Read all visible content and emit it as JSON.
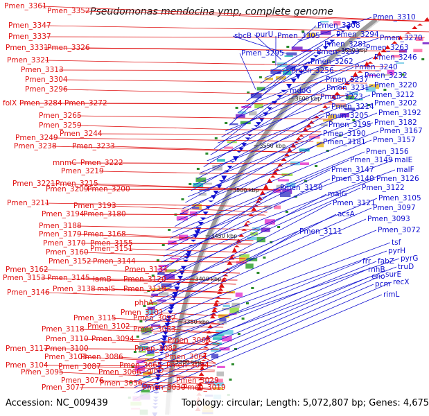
{
  "title": "Pseudomonas mendocina ymp, complete genome",
  "accession": "Accession: NC_009439",
  "topology": "Topology: circular; Length: 5,072,807 bp; Genes: 4,675",
  "colors": {
    "left_strand": "#e01010",
    "right_strand": "#1010d0",
    "backbone": "#9a9a9a",
    "tick": "#2a8a2a"
  },
  "scale_labels": [
    "3650 kbp",
    "3600 kbp",
    "3550 kbp",
    "3500 kbp",
    "3450 kbp",
    "3400 kbp",
    "3350 kbp",
    "3300 kbp"
  ],
  "left_labels": [
    "Pmen_3361",
    "Pmen_3352",
    "Pmen_3347",
    "Pmen_3337",
    "Pmen_3331",
    "Pmen_3326",
    "Pmen_3321",
    "Pmen_3313",
    "Pmen_3304",
    "Pmen_3296",
    "folX",
    "Pmen_3284",
    "Pmen_3272",
    "Pmen_3265",
    "Pmen_3259",
    "Pmen_3244",
    "Pmen_3249",
    "Pmen_3238",
    "Pmen_3233",
    "mnmC",
    "Pmen_3222",
    "Pmen_3219",
    "Pmen_3221",
    "Pmen_3215",
    "Pmen_3209",
    "Pmen_3200",
    "Pmen_3211",
    "Pmen_3193",
    "Pmen_3194",
    "Pmen_3180",
    "Pmen_3188",
    "Pmen_3168",
    "Pmen_3179",
    "Pmen_3155",
    "Pmen_3170",
    "Pmen_3151",
    "Pmen_3160",
    "Pmen_3152",
    "Pmen_3144",
    "Pmen_3162",
    "Pmen_3134",
    "Pmen_3153",
    "Pmen_3145",
    "lamB",
    "Pmen_3120",
    "Pmen_3138",
    "malS",
    "Pmen_3119",
    "Pmen_3146",
    "phhA",
    "Pmen_3101",
    "Pmen_3115",
    "Pmen_3092",
    "Pmen_3102",
    "Pmen_3118",
    "Pmen_3083",
    "Pmen_3110",
    "Pmen_3094",
    "Pmen_3117",
    "Pmen_3100",
    "Pmen_3082",
    "Pmen_3068",
    "Pmen_3103",
    "Pmen_3086",
    "Pmen_3061",
    "Pmen_3104",
    "Pmen_3065",
    "Pmen_3054",
    "Pmen_3087",
    "Pmen_3095",
    "Pmen_3066",
    "glnD",
    "Pmen_3076",
    "Pmen_3029",
    "Pmen_3056",
    "Pmen_3077",
    "Pmen_3030",
    "Pmen_3019"
  ],
  "right_labels": [
    "Pmen_3310",
    "Pmen_3308",
    "sbcB",
    "purU",
    "Pmen_3305",
    "Pmen_3294",
    "Pmen_3270",
    "Pmen_3281",
    "Pmen_3295",
    "Pmen_3263",
    "Pmen_3269",
    "Pmen_3246",
    "Pmen_3262",
    "Pmen_3240",
    "Pmen_3256",
    "Pmen_3232",
    "Pmen_3237",
    "Pmen_3220",
    "mdoG",
    "Pmen_3231",
    "Pmen_3212",
    "Pmen_3223",
    "Pmen_3202",
    "Pmen_3214",
    "Pmen_3192",
    "Pmen_3205",
    "Pmen_3182",
    "Pmen_3195",
    "Pmen_3167",
    "Pmen_3190",
    "Pmen_3157",
    "Pmen_3181",
    "Pmen_3156",
    "Pmen_3149",
    "malE",
    "Pmen_3147",
    "malF",
    "Pmen_3140",
    "Pmen_3126",
    "Pmen_3150",
    "malG",
    "Pmen_3122",
    "Pmen_3105",
    "Pmen_3121",
    "Pmen_3097",
    "acsA",
    "Pmen_3093",
    "Pmen_3111",
    "Pmen_3072",
    "tsf",
    "pyrH",
    "pyrG",
    "frr",
    "fabZ",
    "truD",
    "rnhB",
    "eno",
    "surE",
    "pcm",
    "recX",
    "rimL"
  ]
}
